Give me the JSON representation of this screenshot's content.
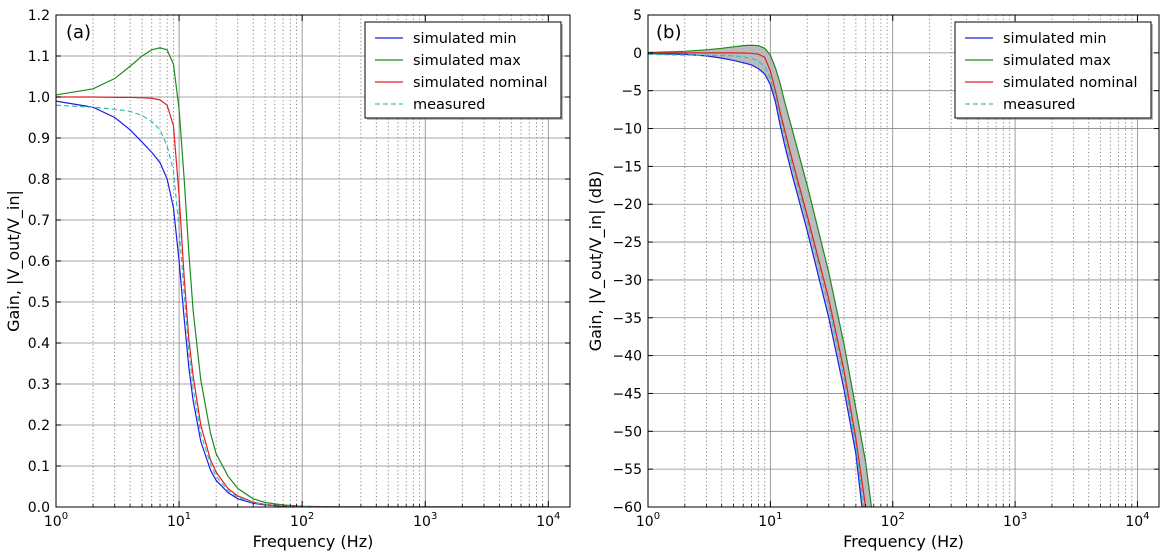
{
  "chart_data": [
    {
      "type": "line",
      "panel_label": "(a)",
      "xlabel": "Frequency (Hz)",
      "ylabel": "Gain, |V_out/V_in|",
      "xscale": "log",
      "xlim": [
        1,
        15000
      ],
      "ylim": [
        0,
        1.2
      ],
      "xtick_labels": [
        {
          "exp": 0,
          "text": "10",
          "sup": "0"
        },
        {
          "exp": 1,
          "text": "10",
          "sup": "1"
        },
        {
          "exp": 2,
          "text": "10",
          "sup": "2"
        },
        {
          "exp": 3,
          "text": "10",
          "sup": "3"
        },
        {
          "exp": 4,
          "text": "10",
          "sup": "4"
        }
      ],
      "yticks": [
        0,
        0.1,
        0.2,
        0.3,
        0.4,
        0.5,
        0.6,
        0.7,
        0.8,
        0.9,
        1.0,
        1.1,
        1.2
      ],
      "ytick_labels": [
        "0.0",
        "0.1",
        "0.2",
        "0.3",
        "0.4",
        "0.5",
        "0.6",
        "0.7",
        "0.8",
        "0.9",
        "1.0",
        "1.1",
        "1.2"
      ],
      "grid": true,
      "legend_position": "top-right",
      "series": [
        {
          "name": "simulated min",
          "color": "#1f1fe0",
          "style": "solid",
          "x": [
            1,
            2,
            3,
            4,
            5,
            6,
            7,
            8,
            9,
            10,
            11,
            12,
            13,
            15,
            18,
            20,
            25,
            30,
            40,
            50,
            70,
            100,
            200,
            1000,
            10000
          ],
          "y": [
            0.99,
            0.975,
            0.95,
            0.92,
            0.89,
            0.865,
            0.84,
            0.8,
            0.73,
            0.6,
            0.46,
            0.34,
            0.26,
            0.16,
            0.09,
            0.065,
            0.035,
            0.02,
            0.009,
            0.005,
            0.002,
            0.001,
            0.0,
            0.0,
            0.0
          ]
        },
        {
          "name": "simulated max",
          "color": "#1f8a1f",
          "style": "solid",
          "x": [
            1,
            2,
            3,
            4,
            5,
            6,
            7,
            8,
            9,
            10,
            11,
            12,
            13,
            15,
            18,
            20,
            25,
            30,
            40,
            50,
            70,
            100,
            200,
            1000,
            10000
          ],
          "y": [
            1.005,
            1.02,
            1.045,
            1.075,
            1.1,
            1.115,
            1.12,
            1.115,
            1.08,
            0.97,
            0.8,
            0.62,
            0.48,
            0.31,
            0.18,
            0.13,
            0.075,
            0.045,
            0.02,
            0.011,
            0.005,
            0.002,
            0.0,
            0.0,
            0.0
          ]
        },
        {
          "name": "simulated nominal",
          "color": "#e02020",
          "style": "solid",
          "x": [
            1,
            2,
            3,
            4,
            5,
            6,
            7,
            8,
            9,
            10,
            11,
            12,
            13,
            15,
            18,
            20,
            25,
            30,
            40,
            50,
            70,
            100,
            200,
            1000,
            10000
          ],
          "y": [
            1.0,
            1.0,
            0.999,
            0.999,
            0.998,
            0.997,
            0.993,
            0.98,
            0.93,
            0.76,
            0.56,
            0.41,
            0.32,
            0.2,
            0.115,
            0.085,
            0.045,
            0.027,
            0.012,
            0.006,
            0.003,
            0.001,
            0.0,
            0.0,
            0.0
          ]
        },
        {
          "name": "measured",
          "color": "#30c0c0",
          "style": "dashed",
          "x": [
            1,
            2,
            3,
            4,
            5,
            6,
            7,
            8,
            9,
            10,
            11,
            12,
            13,
            15,
            18,
            20,
            25,
            30,
            40,
            50,
            70,
            100,
            200,
            1000,
            10000
          ],
          "y": [
            0.98,
            0.975,
            0.97,
            0.965,
            0.955,
            0.94,
            0.92,
            0.88,
            0.82,
            0.68,
            0.52,
            0.38,
            0.29,
            0.18,
            0.105,
            0.075,
            0.04,
            0.024,
            0.011,
            0.006,
            0.003,
            0.001,
            0.0,
            0.0,
            0.0
          ]
        }
      ]
    },
    {
      "type": "line",
      "panel_label": "(b)",
      "xlabel": "Frequency (Hz)",
      "ylabel": "Gain, |V_out/V_in| (dB)",
      "xscale": "log",
      "xlim": [
        1,
        15000
      ],
      "ylim": [
        -60,
        5
      ],
      "xtick_labels": [
        {
          "exp": 0,
          "text": "10",
          "sup": "0"
        },
        {
          "exp": 1,
          "text": "10",
          "sup": "1"
        },
        {
          "exp": 2,
          "text": "10",
          "sup": "2"
        },
        {
          "exp": 3,
          "text": "10",
          "sup": "3"
        },
        {
          "exp": 4,
          "text": "10",
          "sup": "4"
        }
      ],
      "yticks": [
        5,
        0,
        -5,
        -10,
        -15,
        -20,
        -25,
        -30,
        -35,
        -40,
        -45,
        -50,
        -55,
        -60
      ],
      "ytick_labels": [
        "5",
        "0",
        "−5",
        "−10",
        "−15",
        "−20",
        "−25",
        "−30",
        "−35",
        "−40",
        "−45",
        "−50",
        "−55",
        "−60"
      ],
      "grid": true,
      "legend_position": "top-right",
      "shaded_band": {
        "between": [
          "simulated min",
          "simulated max"
        ],
        "color": "#b0b0b0"
      },
      "series": [
        {
          "name": "simulated min",
          "color": "#1f1fe0",
          "style": "solid",
          "x": [
            1,
            2,
            3,
            4,
            5,
            6,
            7,
            8,
            9,
            10,
            11,
            12,
            13,
            15,
            20,
            30,
            40,
            50,
            56
          ],
          "y": [
            -0.1,
            -0.2,
            -0.4,
            -0.7,
            -1.0,
            -1.3,
            -1.6,
            -2.1,
            -2.8,
            -4.2,
            -6.5,
            -9.5,
            -12.0,
            -16.0,
            -23.5,
            -35.0,
            -44.5,
            -53.0,
            -60.0
          ]
        },
        {
          "name": "simulated max",
          "color": "#1f8a1f",
          "style": "solid",
          "x": [
            1,
            2,
            3,
            4,
            5,
            6,
            7,
            8,
            9,
            10,
            11,
            12,
            13,
            15,
            20,
            30,
            40,
            50,
            60,
            67
          ],
          "y": [
            0.05,
            0.2,
            0.4,
            0.6,
            0.8,
            0.95,
            1.0,
            0.95,
            0.6,
            -0.3,
            -2.0,
            -4.0,
            -6.3,
            -10.0,
            -17.5,
            -29.0,
            -38.5,
            -47.0,
            -54.0,
            -60.0
          ]
        },
        {
          "name": "simulated nominal",
          "color": "#e02020",
          "style": "solid",
          "x": [
            1,
            2,
            3,
            4,
            5,
            6,
            7,
            8,
            9,
            10,
            11,
            12,
            13,
            15,
            20,
            30,
            40,
            50,
            60
          ],
          "y": [
            0.0,
            0.0,
            0.0,
            0.0,
            0.0,
            -0.02,
            -0.06,
            -0.18,
            -0.6,
            -2.4,
            -5.0,
            -7.8,
            -10.0,
            -14.0,
            -21.5,
            -32.5,
            -42.0,
            -51.0,
            -60.0
          ]
        },
        {
          "name": "measured",
          "color": "#30c0c0",
          "style": "dashed",
          "x": [
            1,
            2,
            3,
            4,
            5,
            6,
            7,
            8,
            9,
            10,
            11,
            12,
            13,
            15,
            20,
            30,
            40,
            50,
            58
          ],
          "y": [
            -0.2,
            -0.3,
            -0.3,
            -0.35,
            -0.4,
            -0.55,
            -0.75,
            -1.1,
            -1.8,
            -3.4,
            -5.7,
            -8.5,
            -10.8,
            -14.8,
            -22.2,
            -33.5,
            -43.0,
            -52.0,
            -60.0
          ]
        }
      ]
    }
  ]
}
